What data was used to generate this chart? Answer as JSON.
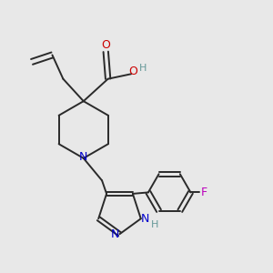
{
  "bg_color": "#e8e8e8",
  "bond_color": "#2a2a2a",
  "N_color": "#0000cc",
  "O_color": "#cc0000",
  "F_color": "#bb00bb",
  "H_color": "#669999",
  "bond_width": 1.4,
  "dbo": 0.012,
  "xlim": [
    0,
    1
  ],
  "ylim": [
    0,
    1
  ]
}
